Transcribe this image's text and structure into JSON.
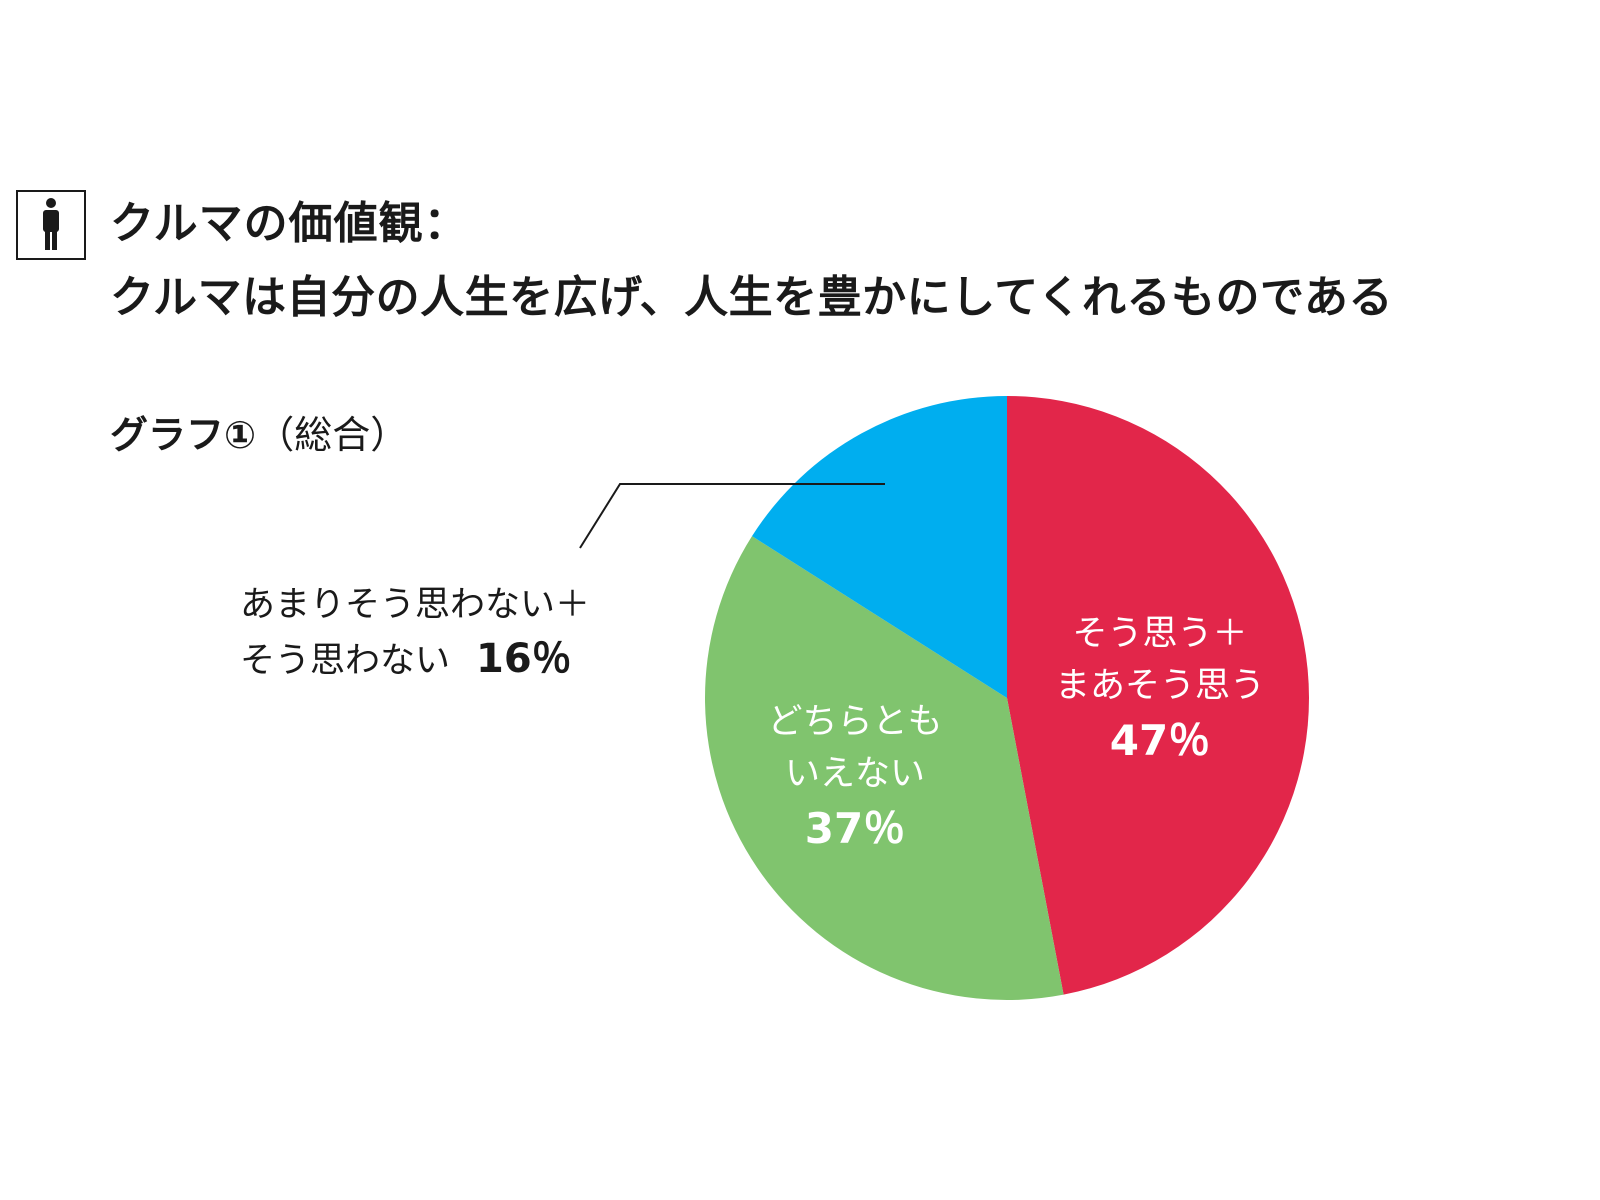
{
  "header": {
    "title_line1": "クルマの価値観：",
    "title_line2": "クルマは自分の人生を広げ、人生を豊かにしてくれるものである",
    "subtitle_bold": "グラフ①",
    "subtitle_normal": "（総合）",
    "icon": "person-icon"
  },
  "chart_data": {
    "type": "pie",
    "title": "クルマは自分の人生を広げ、人生を豊かにしてくれるものである",
    "slices": [
      {
        "label_lines": [
          "そう思う＋",
          "まあそう思う"
        ],
        "value": 47,
        "value_label": "47％",
        "color": "#e2264a"
      },
      {
        "label_lines": [
          "どちらとも",
          "いえない"
        ],
        "value": 37,
        "value_label": "37％",
        "color": "#80c46e"
      },
      {
        "label_lines": [
          "あまりそう思わない＋",
          "そう思わない"
        ],
        "value": 16,
        "value_label": "16％",
        "color": "#00aeef"
      }
    ],
    "start_angle_deg": 0,
    "direction": "clockwise"
  }
}
